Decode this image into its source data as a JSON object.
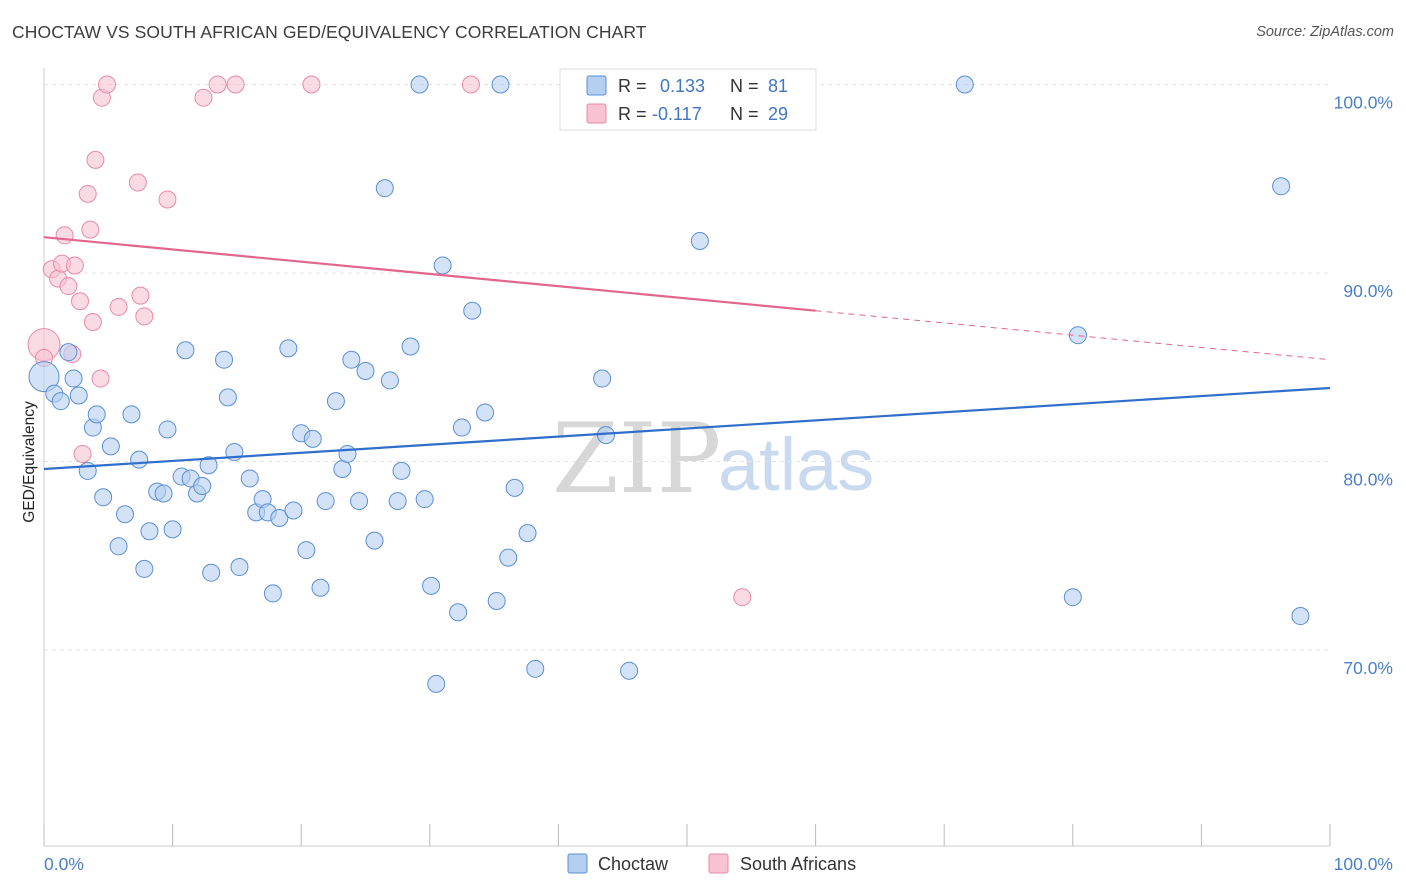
{
  "title": "CHOCTAW VS SOUTH AFRICAN GED/EQUIVALENCY CORRELATION CHART",
  "source": "Source: ZipAtlas.com",
  "watermark": {
    "zip": "ZIP",
    "atlas": "atlas"
  },
  "legend": {
    "r_label": "R =",
    "n_label": "N =",
    "choctaw": {
      "r": "0.133",
      "n": "81"
    },
    "south_africans": {
      "r": "-0.117",
      "n": "29"
    }
  },
  "bottom_legend": {
    "choctaw": "Choctaw",
    "south_africans": "South Africans"
  },
  "colors": {
    "blue_fill": "#b5cff0",
    "blue_stroke": "#5b8fd6",
    "blue_line": "#2f6fcb",
    "pink_fill": "#f7c3d2",
    "pink_stroke": "#e98aa6",
    "pink_line": "#e2668c",
    "tick_text": "#4a7fc8",
    "grid": "#e3e3e3"
  },
  "chart_data": {
    "type": "scatter",
    "title": "CHOCTAW VS SOUTH AFRICAN GED/EQUIVALENCY CORRELATION CHART",
    "xlabel": "",
    "ylabel": "GED/Equivalency",
    "x_tick_labels": [
      "0.0%",
      "100.0%"
    ],
    "y_tick_labels": [
      "100.0%",
      "90.0%",
      "80.0%",
      "70.0%"
    ],
    "y_ticks": [
      100,
      90,
      80,
      70
    ],
    "xlim": [
      0,
      100
    ],
    "ylim": [
      59.6,
      101.3
    ],
    "grid": true,
    "series": [
      {
        "name": "Choctaw",
        "color": "#5b8fd6",
        "trend": {
          "x": [
            0,
            100
          ],
          "y": [
            79.6,
            83.9
          ]
        },
        "points": [
          [
            0,
            84.5
          ],
          [
            0.8,
            83.6
          ],
          [
            1.3,
            83.2
          ],
          [
            1.9,
            85.8
          ],
          [
            2.3,
            84.4
          ],
          [
            2.7,
            83.5
          ],
          [
            3.4,
            79.5
          ],
          [
            3.8,
            81.8
          ],
          [
            4.1,
            82.5
          ],
          [
            4.6,
            78.1
          ],
          [
            5.2,
            80.8
          ],
          [
            5.8,
            75.5
          ],
          [
            6.3,
            77.2
          ],
          [
            6.8,
            82.5
          ],
          [
            7.4,
            80.1
          ],
          [
            7.8,
            74.3
          ],
          [
            8.2,
            76.3
          ],
          [
            8.8,
            78.4
          ],
          [
            9.3,
            78.3
          ],
          [
            9.6,
            81.7
          ],
          [
            10.0,
            76.4
          ],
          [
            10.7,
            79.2
          ],
          [
            11.0,
            85.9
          ],
          [
            11.4,
            79.1
          ],
          [
            11.9,
            78.3
          ],
          [
            12.3,
            78.7
          ],
          [
            12.8,
            79.8
          ],
          [
            13.0,
            74.1
          ],
          [
            14.0,
            85.4
          ],
          [
            14.3,
            83.4
          ],
          [
            14.8,
            80.5
          ],
          [
            15.2,
            74.4
          ],
          [
            16.0,
            79.1
          ],
          [
            16.5,
            77.3
          ],
          [
            17.0,
            78.0
          ],
          [
            17.4,
            77.3
          ],
          [
            17.8,
            73.0
          ],
          [
            18.3,
            77.0
          ],
          [
            19.0,
            86.0
          ],
          [
            19.4,
            77.4
          ],
          [
            20.0,
            81.5
          ],
          [
            20.4,
            75.3
          ],
          [
            20.9,
            81.2
          ],
          [
            21.5,
            73.3
          ],
          [
            21.9,
            77.9
          ],
          [
            22.7,
            83.2
          ],
          [
            23.2,
            79.6
          ],
          [
            23.6,
            80.4
          ],
          [
            23.9,
            85.4
          ],
          [
            24.5,
            77.9
          ],
          [
            25.0,
            84.8
          ],
          [
            25.7,
            75.8
          ],
          [
            26.5,
            94.5
          ],
          [
            26.9,
            84.3
          ],
          [
            27.5,
            77.9
          ],
          [
            27.8,
            79.5
          ],
          [
            28.5,
            86.1
          ],
          [
            29.2,
            100
          ],
          [
            29.6,
            78.0
          ],
          [
            30.1,
            73.4
          ],
          [
            30.5,
            68.2
          ],
          [
            31.0,
            90.4
          ],
          [
            32.2,
            72.0
          ],
          [
            32.5,
            81.8
          ],
          [
            33.3,
            88.0
          ],
          [
            34.3,
            82.6
          ],
          [
            35.2,
            72.6
          ],
          [
            35.5,
            100
          ],
          [
            36.1,
            74.9
          ],
          [
            36.6,
            78.6
          ],
          [
            37.6,
            76.2
          ],
          [
            38.2,
            69.0
          ],
          [
            43.4,
            84.4
          ],
          [
            43.7,
            81.4
          ],
          [
            45.5,
            68.9
          ],
          [
            51.0,
            91.7
          ],
          [
            71.6,
            100
          ],
          [
            80.0,
            72.8
          ],
          [
            80.4,
            86.7
          ],
          [
            96.2,
            94.6
          ],
          [
            97.7,
            71.8
          ]
        ]
      },
      {
        "name": "South Africans",
        "color": "#e98aa6",
        "trend": {
          "x": [
            0,
            60
          ],
          "y": [
            91.9,
            88.0
          ]
        },
        "trend_dashed": {
          "x": [
            60,
            100
          ],
          "y": [
            88.0,
            85.4
          ]
        },
        "points": [
          [
            0,
            86.2
          ],
          [
            0.6,
            90.2
          ],
          [
            1.1,
            89.7
          ],
          [
            1.4,
            90.5
          ],
          [
            1.6,
            92.0
          ],
          [
            1.9,
            89.3
          ],
          [
            2.2,
            85.7
          ],
          [
            2.4,
            90.4
          ],
          [
            2.8,
            88.5
          ],
          [
            3.0,
            80.4
          ],
          [
            3.4,
            94.2
          ],
          [
            3.6,
            92.3
          ],
          [
            3.8,
            87.4
          ],
          [
            4.0,
            96.0
          ],
          [
            4.4,
            84.4
          ],
          [
            4.5,
            99.3
          ],
          [
            4.9,
            100
          ],
          [
            5.8,
            88.2
          ],
          [
            7.3,
            94.8
          ],
          [
            7.5,
            88.8
          ],
          [
            7.8,
            87.7
          ],
          [
            9.6,
            93.9
          ],
          [
            12.4,
            99.3
          ],
          [
            13.5,
            100
          ],
          [
            14.9,
            100
          ],
          [
            20.8,
            100
          ],
          [
            33.2,
            100
          ],
          [
            54.3,
            72.8
          ],
          [
            0,
            85.5
          ]
        ]
      }
    ]
  }
}
